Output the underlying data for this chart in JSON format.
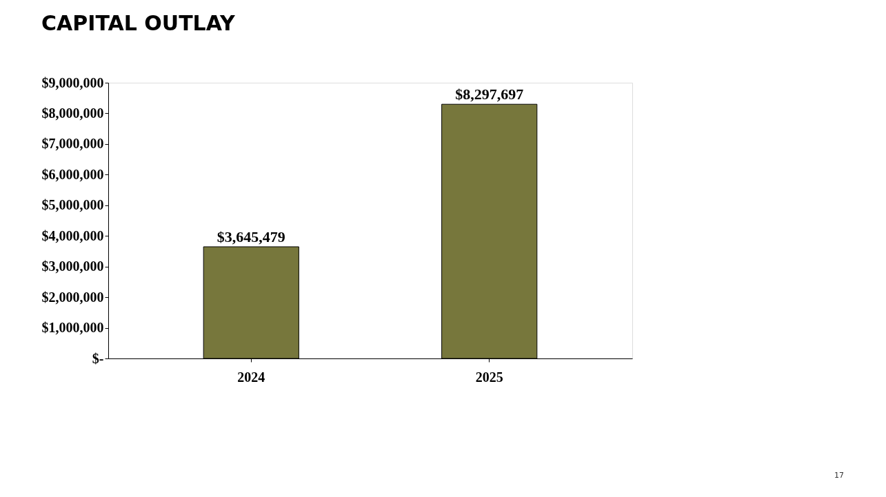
{
  "chart_data": {
    "type": "bar",
    "title": "CAPITAL OUTLAY",
    "categories": [
      "2024",
      "2025"
    ],
    "values": [
      3645479,
      8297697
    ],
    "value_labels": [
      "$3,645,479",
      "$8,297,697"
    ],
    "color": "#77773c",
    "ylim": [
      0,
      9000000
    ],
    "yticks": [
      {
        "value": 0,
        "label": "$-"
      },
      {
        "value": 1000000,
        "label": "$1,000,000"
      },
      {
        "value": 2000000,
        "label": "$2,000,000"
      },
      {
        "value": 3000000,
        "label": "$3,000,000"
      },
      {
        "value": 4000000,
        "label": "$4,000,000"
      },
      {
        "value": 5000000,
        "label": "$5,000,000"
      },
      {
        "value": 6000000,
        "label": "$6,000,000"
      },
      {
        "value": 7000000,
        "label": "$7,000,000"
      },
      {
        "value": 8000000,
        "label": "$8,000,000"
      },
      {
        "value": 9000000,
        "label": "$9,000,000"
      }
    ],
    "grid": false,
    "annotations": [
      "17"
    ]
  }
}
